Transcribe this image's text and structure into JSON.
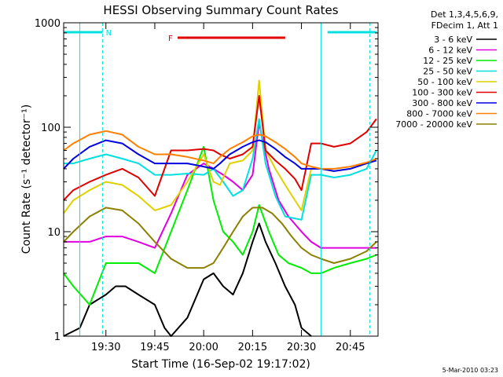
{
  "chart_data": {
    "type": "line",
    "title": "HESSI Observing Summary Count Rates",
    "xlabel": "Start Time (16-Sep-02 19:17:02)",
    "ylabel": "Count Rate (s⁻¹ detector⁻¹)",
    "yscale": "log",
    "ylim": [
      1,
      1000
    ],
    "xlim": [
      "19:17:02",
      "20:53:30"
    ],
    "x_ticks": [
      "19:30",
      "19:45",
      "20:00",
      "20:15",
      "20:30",
      "20:45"
    ],
    "y_ticks": [
      "1",
      "10",
      "100",
      "1000"
    ],
    "legend_header": [
      "Det 1,3,4,5,6,9,",
      "FDecim 1, Att 1"
    ],
    "legend_position": "right",
    "series": [
      {
        "name": "3 - 6 keV",
        "color": "#000000",
        "x": [
          "19:17",
          "19:22",
          "19:25",
          "19:30",
          "19:33",
          "19:36",
          "19:40",
          "19:45",
          "19:48",
          "19:50",
          "19:55",
          "20:00",
          "20:03",
          "20:06",
          "20:09",
          "20:12",
          "20:15",
          "20:17",
          "20:19",
          "20:22",
          "20:25",
          "20:28",
          "20:30",
          "20:33"
        ],
        "values": [
          1,
          1.2,
          2,
          2.5,
          3,
          3,
          2.5,
          2,
          1.2,
          1,
          1.5,
          3.5,
          4,
          3,
          2.5,
          4,
          8,
          12,
          8,
          5,
          3,
          2,
          1.2,
          1
        ]
      },
      {
        "name": "6 - 12 keV",
        "color": "#e000e0",
        "x": [
          "19:17",
          "19:25",
          "19:30",
          "19:35",
          "19:40",
          "19:45",
          "19:50",
          "19:55",
          "20:00",
          "20:03",
          "20:06",
          "20:09",
          "20:12",
          "20:15",
          "20:17",
          "20:20",
          "20:23",
          "20:26",
          "20:30",
          "20:33",
          "20:36",
          "20:40",
          "20:45",
          "20:50",
          "20:53"
        ],
        "values": [
          8,
          8,
          9,
          9,
          8,
          7,
          15,
          35,
          45,
          40,
          35,
          30,
          25,
          35,
          110,
          40,
          20,
          14,
          10,
          8,
          7,
          7,
          7,
          7,
          7
        ]
      },
      {
        "name": "12 - 25 keV",
        "color": "#00ee00",
        "x": [
          "19:17",
          "19:20",
          "19:25",
          "19:30",
          "19:35",
          "19:40",
          "19:45",
          "19:50",
          "19:55",
          "20:00",
          "20:03",
          "20:06",
          "20:09",
          "20:12",
          "20:15",
          "20:17",
          "20:20",
          "20:23",
          "20:26",
          "20:30",
          "20:33",
          "20:36",
          "20:40",
          "20:45",
          "20:50",
          "20:53"
        ],
        "values": [
          4,
          3,
          2,
          5,
          5,
          5,
          4,
          10,
          25,
          65,
          20,
          10,
          8,
          6,
          10,
          18,
          10,
          6,
          5,
          4.5,
          4,
          4,
          4.5,
          5,
          5.5,
          6
        ]
      },
      {
        "name": "25 - 50 keV",
        "color": "#00e0e0",
        "x": [
          "19:17",
          "19:20",
          "19:25",
          "19:30",
          "19:35",
          "19:40",
          "19:45",
          "19:50",
          "19:55",
          "20:00",
          "20:03",
          "20:06",
          "20:09",
          "20:12",
          "20:15",
          "20:17",
          "20:19",
          "20:22",
          "20:25",
          "20:30",
          "20:33",
          "20:36",
          "20:40",
          "20:45",
          "20:50",
          "20:53"
        ],
        "values": [
          45,
          45,
          50,
          55,
          50,
          45,
          35,
          35,
          36,
          35,
          40,
          30,
          22,
          25,
          50,
          120,
          45,
          22,
          14,
          13,
          35,
          35,
          33,
          35,
          40,
          60
        ]
      },
      {
        "name": "50 - 100 keV",
        "color": "#e0d000",
        "x": [
          "19:17",
          "19:20",
          "19:25",
          "19:30",
          "19:35",
          "19:40",
          "19:45",
          "19:50",
          "19:55",
          "20:00",
          "20:03",
          "20:05",
          "20:08",
          "20:12",
          "20:15",
          "20:17",
          "20:19",
          "20:22",
          "20:25",
          "20:28",
          "20:30",
          "20:33",
          "20:36",
          "20:40",
          "20:45",
          "20:50",
          "20:53"
        ],
        "values": [
          15,
          20,
          25,
          30,
          28,
          22,
          16,
          18,
          30,
          55,
          30,
          28,
          45,
          48,
          60,
          280,
          60,
          40,
          28,
          20,
          16,
          40,
          40,
          38,
          40,
          45,
          50
        ]
      },
      {
        "name": "100 - 300 keV",
        "color": "#e00000",
        "x": [
          "19:17",
          "19:20",
          "19:25",
          "19:30",
          "19:35",
          "19:40",
          "19:45",
          "19:50",
          "19:55",
          "20:00",
          "20:03",
          "20:05",
          "20:08",
          "20:12",
          "20:15",
          "20:17",
          "20:19",
          "20:22",
          "20:25",
          "20:28",
          "20:30",
          "20:33",
          "20:36",
          "20:40",
          "20:45",
          "20:50",
          "20:53"
        ],
        "values": [
          20,
          25,
          30,
          35,
          40,
          33,
          22,
          60,
          60,
          62,
          60,
          55,
          50,
          55,
          65,
          200,
          60,
          48,
          40,
          32,
          25,
          70,
          70,
          65,
          70,
          90,
          120
        ]
      },
      {
        "name": "300 - 800 keV",
        "color": "#0000e0",
        "x": [
          "19:17",
          "19:20",
          "19:25",
          "19:30",
          "19:35",
          "19:40",
          "19:45",
          "19:50",
          "19:55",
          "20:00",
          "20:03",
          "20:05",
          "20:08",
          "20:12",
          "20:15",
          "20:17",
          "20:19",
          "20:22",
          "20:25",
          "20:28",
          "20:30",
          "20:33",
          "20:36",
          "20:40",
          "20:45",
          "20:50",
          "20:53"
        ],
        "values": [
          40,
          50,
          65,
          75,
          70,
          55,
          45,
          45,
          45,
          42,
          40,
          45,
          55,
          65,
          72,
          75,
          72,
          62,
          52,
          45,
          40,
          40,
          40,
          38,
          40,
          45,
          48
        ]
      },
      {
        "name": "800 - 7000 keV",
        "color": "#ff8000",
        "x": [
          "19:17",
          "19:20",
          "19:25",
          "19:30",
          "19:35",
          "19:40",
          "19:45",
          "19:50",
          "19:55",
          "20:00",
          "20:03",
          "20:05",
          "20:08",
          "20:12",
          "20:15",
          "20:17",
          "20:19",
          "20:22",
          "20:25",
          "20:28",
          "20:30",
          "20:33",
          "20:36",
          "20:40",
          "20:45",
          "20:50",
          "20:53"
        ],
        "values": [
          60,
          70,
          85,
          92,
          85,
          65,
          55,
          55,
          52,
          48,
          45,
          52,
          62,
          72,
          82,
          85,
          82,
          72,
          62,
          52,
          45,
          42,
          40,
          40,
          42,
          46,
          50
        ]
      },
      {
        "name": "7000 - 20000 keV",
        "color": "#8b8000",
        "x": [
          "19:17",
          "19:20",
          "19:25",
          "19:30",
          "19:35",
          "19:40",
          "19:45",
          "19:50",
          "19:55",
          "20:00",
          "20:03",
          "20:06",
          "20:09",
          "20:12",
          "20:15",
          "20:18",
          "20:21",
          "20:24",
          "20:27",
          "20:30",
          "20:33",
          "20:36",
          "20:40",
          "20:45",
          "20:50",
          "20:53"
        ],
        "values": [
          8,
          10,
          14,
          17,
          16,
          12,
          8,
          5.5,
          4.5,
          4.5,
          5,
          7,
          10,
          14,
          17,
          17,
          15,
          12,
          9,
          7,
          6,
          5.5,
          5,
          5.5,
          6.5,
          8
        ]
      }
    ],
    "annotations": [
      {
        "label": "N",
        "color": "#00e0e0",
        "segments": [
          [
            "19:17",
            "19:29"
          ],
          [
            "20:38",
            "20:53"
          ]
        ]
      },
      {
        "label": "F",
        "color": "#e00000",
        "segments": [
          [
            "19:52",
            "20:25"
          ]
        ]
      }
    ],
    "vlines": [
      {
        "x": "19:22",
        "color": "#00e0e0",
        "style": "solid"
      },
      {
        "x": "19:29",
        "color": "#00e0e0",
        "style": "dashed"
      },
      {
        "x": "20:36",
        "color": "#00e0e0",
        "style": "solid"
      },
      {
        "x": "20:51",
        "color": "#00e0e0",
        "style": "dashed"
      }
    ]
  },
  "footer_timestamp": "5-Mar-2010 03:23"
}
